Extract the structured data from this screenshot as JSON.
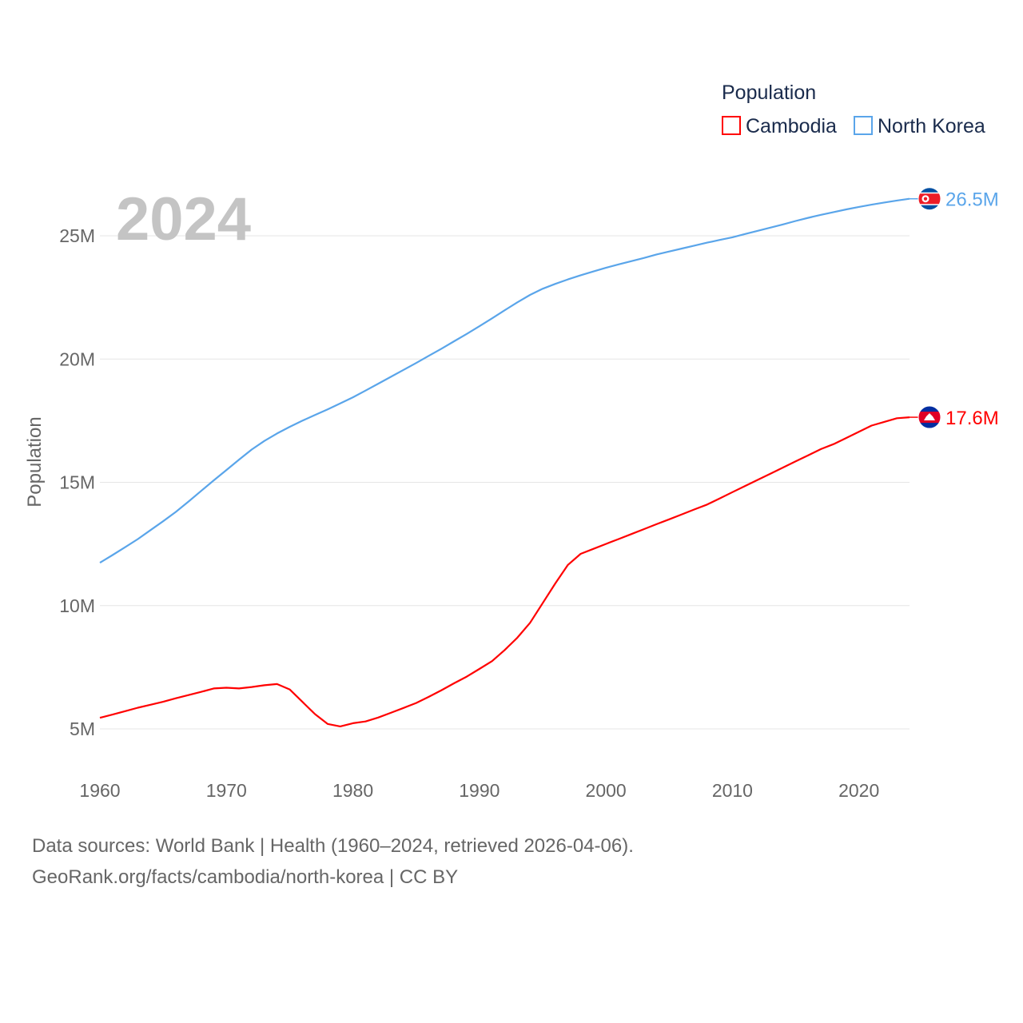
{
  "chart_data": {
    "type": "line",
    "title": "",
    "year_label": "2024",
    "xlabel": "",
    "ylabel": "Population",
    "xlim": [
      1960,
      2024
    ],
    "ylim": [
      3000000,
      27500000
    ],
    "x_ticks": [
      1960,
      1970,
      1980,
      1990,
      2000,
      2010,
      2020
    ],
    "x_tick_labels": [
      "1960",
      "1970",
      "1980",
      "1990",
      "2000",
      "2010",
      "2020"
    ],
    "y_ticks": [
      5000000,
      10000000,
      15000000,
      20000000,
      25000000
    ],
    "y_tick_labels": [
      "5M",
      "10M",
      "15M",
      "20M",
      "25M"
    ],
    "grid": true,
    "legend": {
      "title": "Population",
      "placement": "top-right"
    },
    "x": [
      1960,
      1961,
      1962,
      1963,
      1964,
      1965,
      1966,
      1967,
      1968,
      1969,
      1970,
      1971,
      1972,
      1973,
      1974,
      1975,
      1976,
      1977,
      1978,
      1979,
      1980,
      1981,
      1982,
      1983,
      1984,
      1985,
      1986,
      1987,
      1988,
      1989,
      1990,
      1991,
      1992,
      1993,
      1994,
      1995,
      1996,
      1997,
      1998,
      1999,
      2000,
      2001,
      2002,
      2003,
      2004,
      2005,
      2006,
      2007,
      2008,
      2009,
      2010,
      2011,
      2012,
      2013,
      2014,
      2015,
      2016,
      2017,
      2018,
      2019,
      2020,
      2021,
      2022,
      2023,
      2024
    ],
    "series": [
      {
        "name": "Cambodia",
        "color": "#ff0000",
        "end_label": "17.6M",
        "flag": "cambodia-flag",
        "values": [
          5.45,
          5.58,
          5.72,
          5.86,
          5.98,
          6.1,
          6.24,
          6.37,
          6.5,
          6.64,
          6.67,
          6.64,
          6.7,
          6.77,
          6.82,
          6.6,
          6.1,
          5.6,
          5.2,
          5.1,
          5.23,
          5.3,
          5.46,
          5.65,
          5.85,
          6.05,
          6.3,
          6.57,
          6.85,
          7.12,
          7.43,
          7.75,
          8.2,
          8.7,
          9.3,
          10.1,
          10.9,
          11.65,
          12.1,
          12.3,
          12.5,
          12.7,
          12.9,
          13.1,
          13.3,
          13.5,
          13.7,
          13.9,
          14.1,
          14.35,
          14.6,
          14.85,
          15.1,
          15.35,
          15.6,
          15.85,
          16.1,
          16.35,
          16.55,
          16.8,
          17.05,
          17.3,
          17.45,
          17.6,
          17.64
        ]
      },
      {
        "name": "North Korea",
        "color": "#5aa5ea",
        "end_label": "26.5M",
        "flag": "north-korea-flag",
        "values": [
          11.74,
          12.05,
          12.37,
          12.7,
          13.06,
          13.42,
          13.8,
          14.22,
          14.65,
          15.08,
          15.5,
          15.92,
          16.33,
          16.68,
          16.98,
          17.25,
          17.5,
          17.73,
          17.96,
          18.2,
          18.45,
          18.72,
          19.0,
          19.28,
          19.56,
          19.84,
          20.13,
          20.42,
          20.72,
          21.02,
          21.33,
          21.65,
          21.98,
          22.3,
          22.6,
          22.85,
          23.05,
          23.23,
          23.4,
          23.55,
          23.7,
          23.84,
          23.97,
          24.1,
          24.24,
          24.36,
          24.48,
          24.6,
          24.72,
          24.83,
          24.94,
          25.07,
          25.2,
          25.33,
          25.46,
          25.6,
          25.73,
          25.85,
          25.96,
          26.07,
          26.17,
          26.26,
          26.35,
          26.43,
          26.5
        ]
      }
    ],
    "values_unit": "millions"
  },
  "footer": {
    "line1": "Data sources: World Bank | Health (1960–2024, retrieved 2026-04-06).",
    "line2": "GeoRank.org/facts/cambodia/north-korea | CC BY"
  }
}
